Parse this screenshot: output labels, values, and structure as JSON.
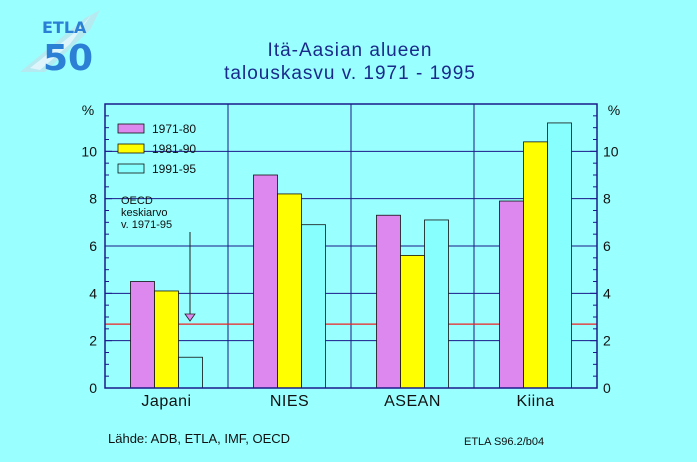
{
  "logo": {
    "line1": "ETLA",
    "line2": "50"
  },
  "chart_data": {
    "type": "bar",
    "title": [
      "Itä-Aasian alueen",
      "talouskasvu v. 1971 - 1995"
    ],
    "categories": [
      "Japani",
      "NIES",
      "ASEAN",
      "Kiina"
    ],
    "series": [
      {
        "name": "1971-80",
        "color": "#dd88ee",
        "values": [
          4.5,
          9.0,
          7.3,
          7.9
        ]
      },
      {
        "name": "1981-90",
        "color": "#ffff00",
        "values": [
          4.1,
          8.2,
          5.6,
          10.4
        ]
      },
      {
        "name": "1991-95",
        "color": "#88ffff",
        "values": [
          1.3,
          6.9,
          7.1,
          11.2
        ]
      }
    ],
    "ylim": [
      0,
      12
    ],
    "yticks": [
      0,
      2,
      4,
      6,
      8,
      10
    ],
    "yunit_label": "%",
    "reference_line": {
      "value": 2.7,
      "color": "#ee2222",
      "label": [
        "OECD",
        "keskiarvo",
        "v. 1971-95"
      ]
    },
    "grid": true,
    "legend_position": "top-left"
  },
  "footer": {
    "source": "Lähde: ADB, ETLA, IMF, OECD",
    "code": "ETLA S96.2/b04"
  },
  "colors": {
    "background": "#99ffff",
    "frame": "#1a1a8a",
    "grid": "#1a1a8a",
    "title": "#1a2a8a"
  }
}
